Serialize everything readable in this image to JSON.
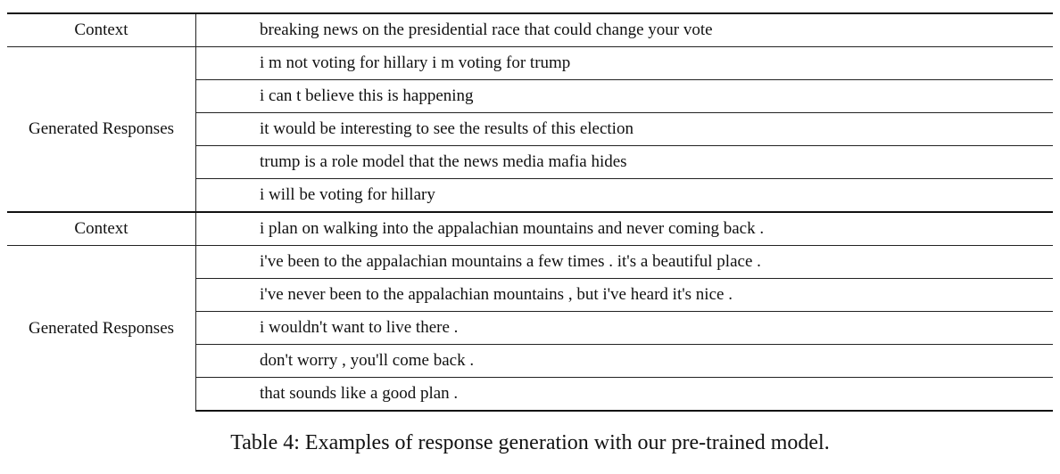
{
  "table": {
    "groups": [
      {
        "context_label": "Context",
        "context": "breaking news on the presidential race that could change your vote",
        "responses_label": "Generated Responses",
        "responses": [
          "i m not voting for hillary i m voting for trump",
          "i can t believe this is happening",
          "it would be interesting to see the results of this election",
          "trump is a role model that the news media mafia hides",
          "i will be voting for hillary"
        ]
      },
      {
        "context_label": "Context",
        "context": "i plan on walking into the appalachian mountains and never coming back .",
        "responses_label": "Generated Responses",
        "responses": [
          "i've been to the appalachian mountains a few times . it's a beautiful place .",
          "i've never been to the appalachian mountains , but i've heard it's nice .",
          "i wouldn't want to live there .",
          "don't worry , you'll come back .",
          "that sounds like a good plan ."
        ]
      }
    ]
  },
  "caption": "Table 4: Examples of response generation with our pre-trained model."
}
